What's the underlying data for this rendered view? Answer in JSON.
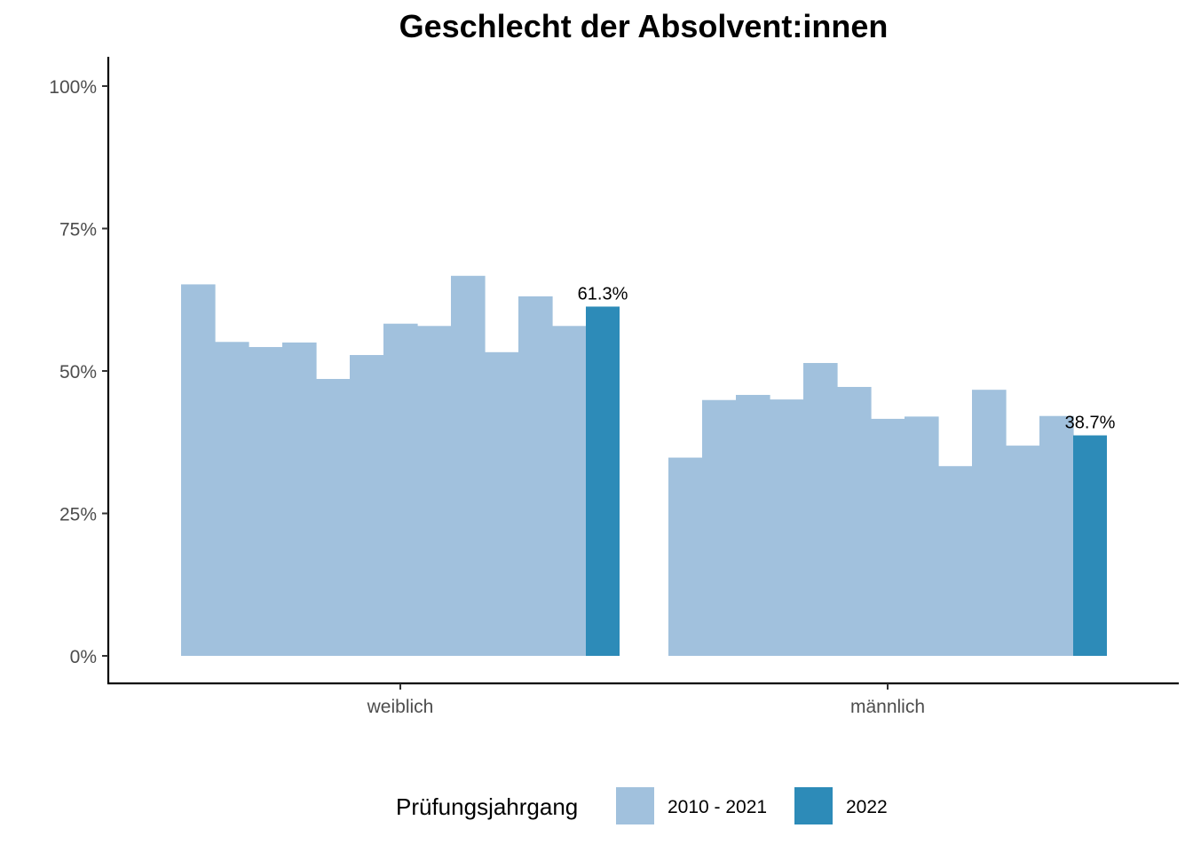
{
  "chart_data": {
    "type": "bar",
    "title": "Geschlecht der Absolvent:innen",
    "xlabel": "",
    "ylabel": "",
    "categories": [
      "weiblich",
      "männlich"
    ],
    "ylim": [
      0,
      1
    ],
    "y_ticks": [
      {
        "value": 0,
        "label": "0%"
      },
      {
        "value": 0.25,
        "label": "25%"
      },
      {
        "value": 0.5,
        "label": "50%"
      },
      {
        "value": 0.75,
        "label": "75%"
      },
      {
        "value": 1.0,
        "label": "100%"
      }
    ],
    "grid": false,
    "legend": {
      "title": "Prüfungsjahrgang",
      "position": "bottom",
      "entries": [
        {
          "label": "2010 - 2021",
          "color": "#a1c1dd"
        },
        {
          "label": "2022",
          "color": "#2d8bb8"
        }
      ]
    },
    "series": [
      {
        "name": "2010 - 2021",
        "color": "#a1c1dd",
        "values": [
          [
            0.652,
            0.551,
            0.542,
            0.55,
            0.486,
            0.528,
            0.583,
            0.579,
            0.667,
            0.533,
            0.631,
            0.579
          ],
          [
            0.348,
            0.449,
            0.458,
            0.45,
            0.514,
            0.472,
            0.416,
            0.42,
            0.333,
            0.467,
            0.369,
            0.421
          ]
        ]
      },
      {
        "name": "2022",
        "color": "#2d8bb8",
        "values": [
          0.613,
          0.387
        ],
        "data_labels": [
          "61.3%",
          "38.7%"
        ]
      }
    ]
  }
}
